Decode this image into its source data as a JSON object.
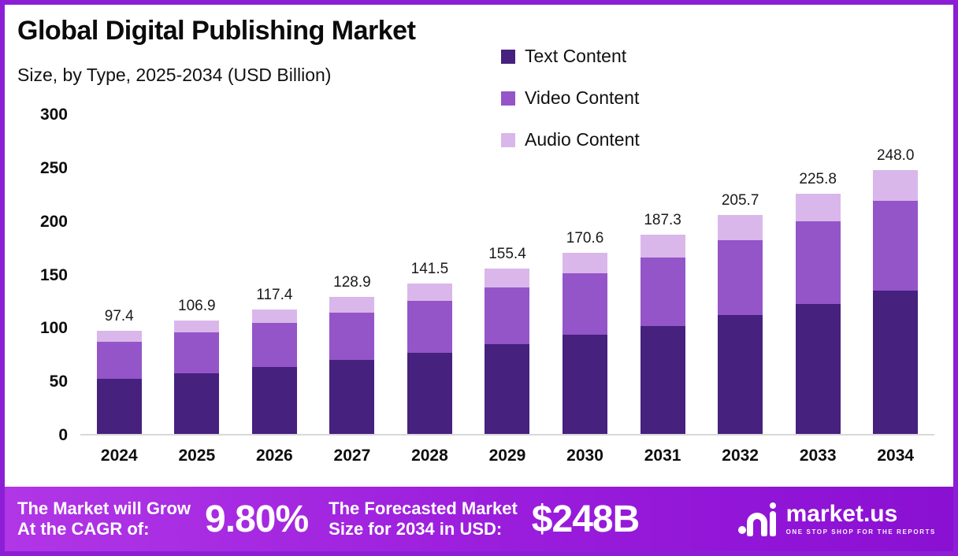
{
  "title": "Global Digital Publishing Market",
  "subtitle": "Size, by Type, 2025-2034 (USD Billion)",
  "chart_data": {
    "type": "bar",
    "stacked": true,
    "categories": [
      "2024",
      "2025",
      "2026",
      "2027",
      "2028",
      "2029",
      "2030",
      "2031",
      "2032",
      "2033",
      "2034"
    ],
    "series": [
      {
        "name": "Text Content",
        "color": "#46217e",
        "values": [
          52.0,
          57.2,
          63.0,
          69.5,
          76.6,
          84.5,
          93.0,
          101.8,
          111.6,
          122.5,
          134.5
        ]
      },
      {
        "name": "Video Content",
        "color": "#9455c8",
        "values": [
          35.0,
          38.0,
          41.2,
          44.7,
          48.9,
          53.3,
          58.2,
          63.9,
          70.3,
          77.3,
          85.0
        ]
      },
      {
        "name": "Audio Content",
        "color": "#d9b7ea",
        "values": [
          10.4,
          11.7,
          13.2,
          14.7,
          16.0,
          17.6,
          19.4,
          21.6,
          23.8,
          26.0,
          28.5
        ]
      }
    ],
    "totals": [
      97.4,
      106.9,
      117.4,
      128.9,
      141.5,
      155.4,
      170.6,
      187.3,
      205.7,
      225.8,
      248.0
    ],
    "ylim": [
      0,
      300
    ],
    "yticks": [
      0,
      50,
      100,
      150,
      200,
      250,
      300
    ],
    "legend_position": "top-right",
    "grid": false
  },
  "footer": {
    "cagr_label": "The Market will Grow\nAt the CAGR of:",
    "cagr_value": "9.80%",
    "forecast_label": "The Forecasted Market\nSize for 2034 in USD:",
    "forecast_value": "$248B",
    "brand_name": "market.us",
    "brand_tagline": "ONE STOP SHOP FOR THE REPORTS"
  }
}
